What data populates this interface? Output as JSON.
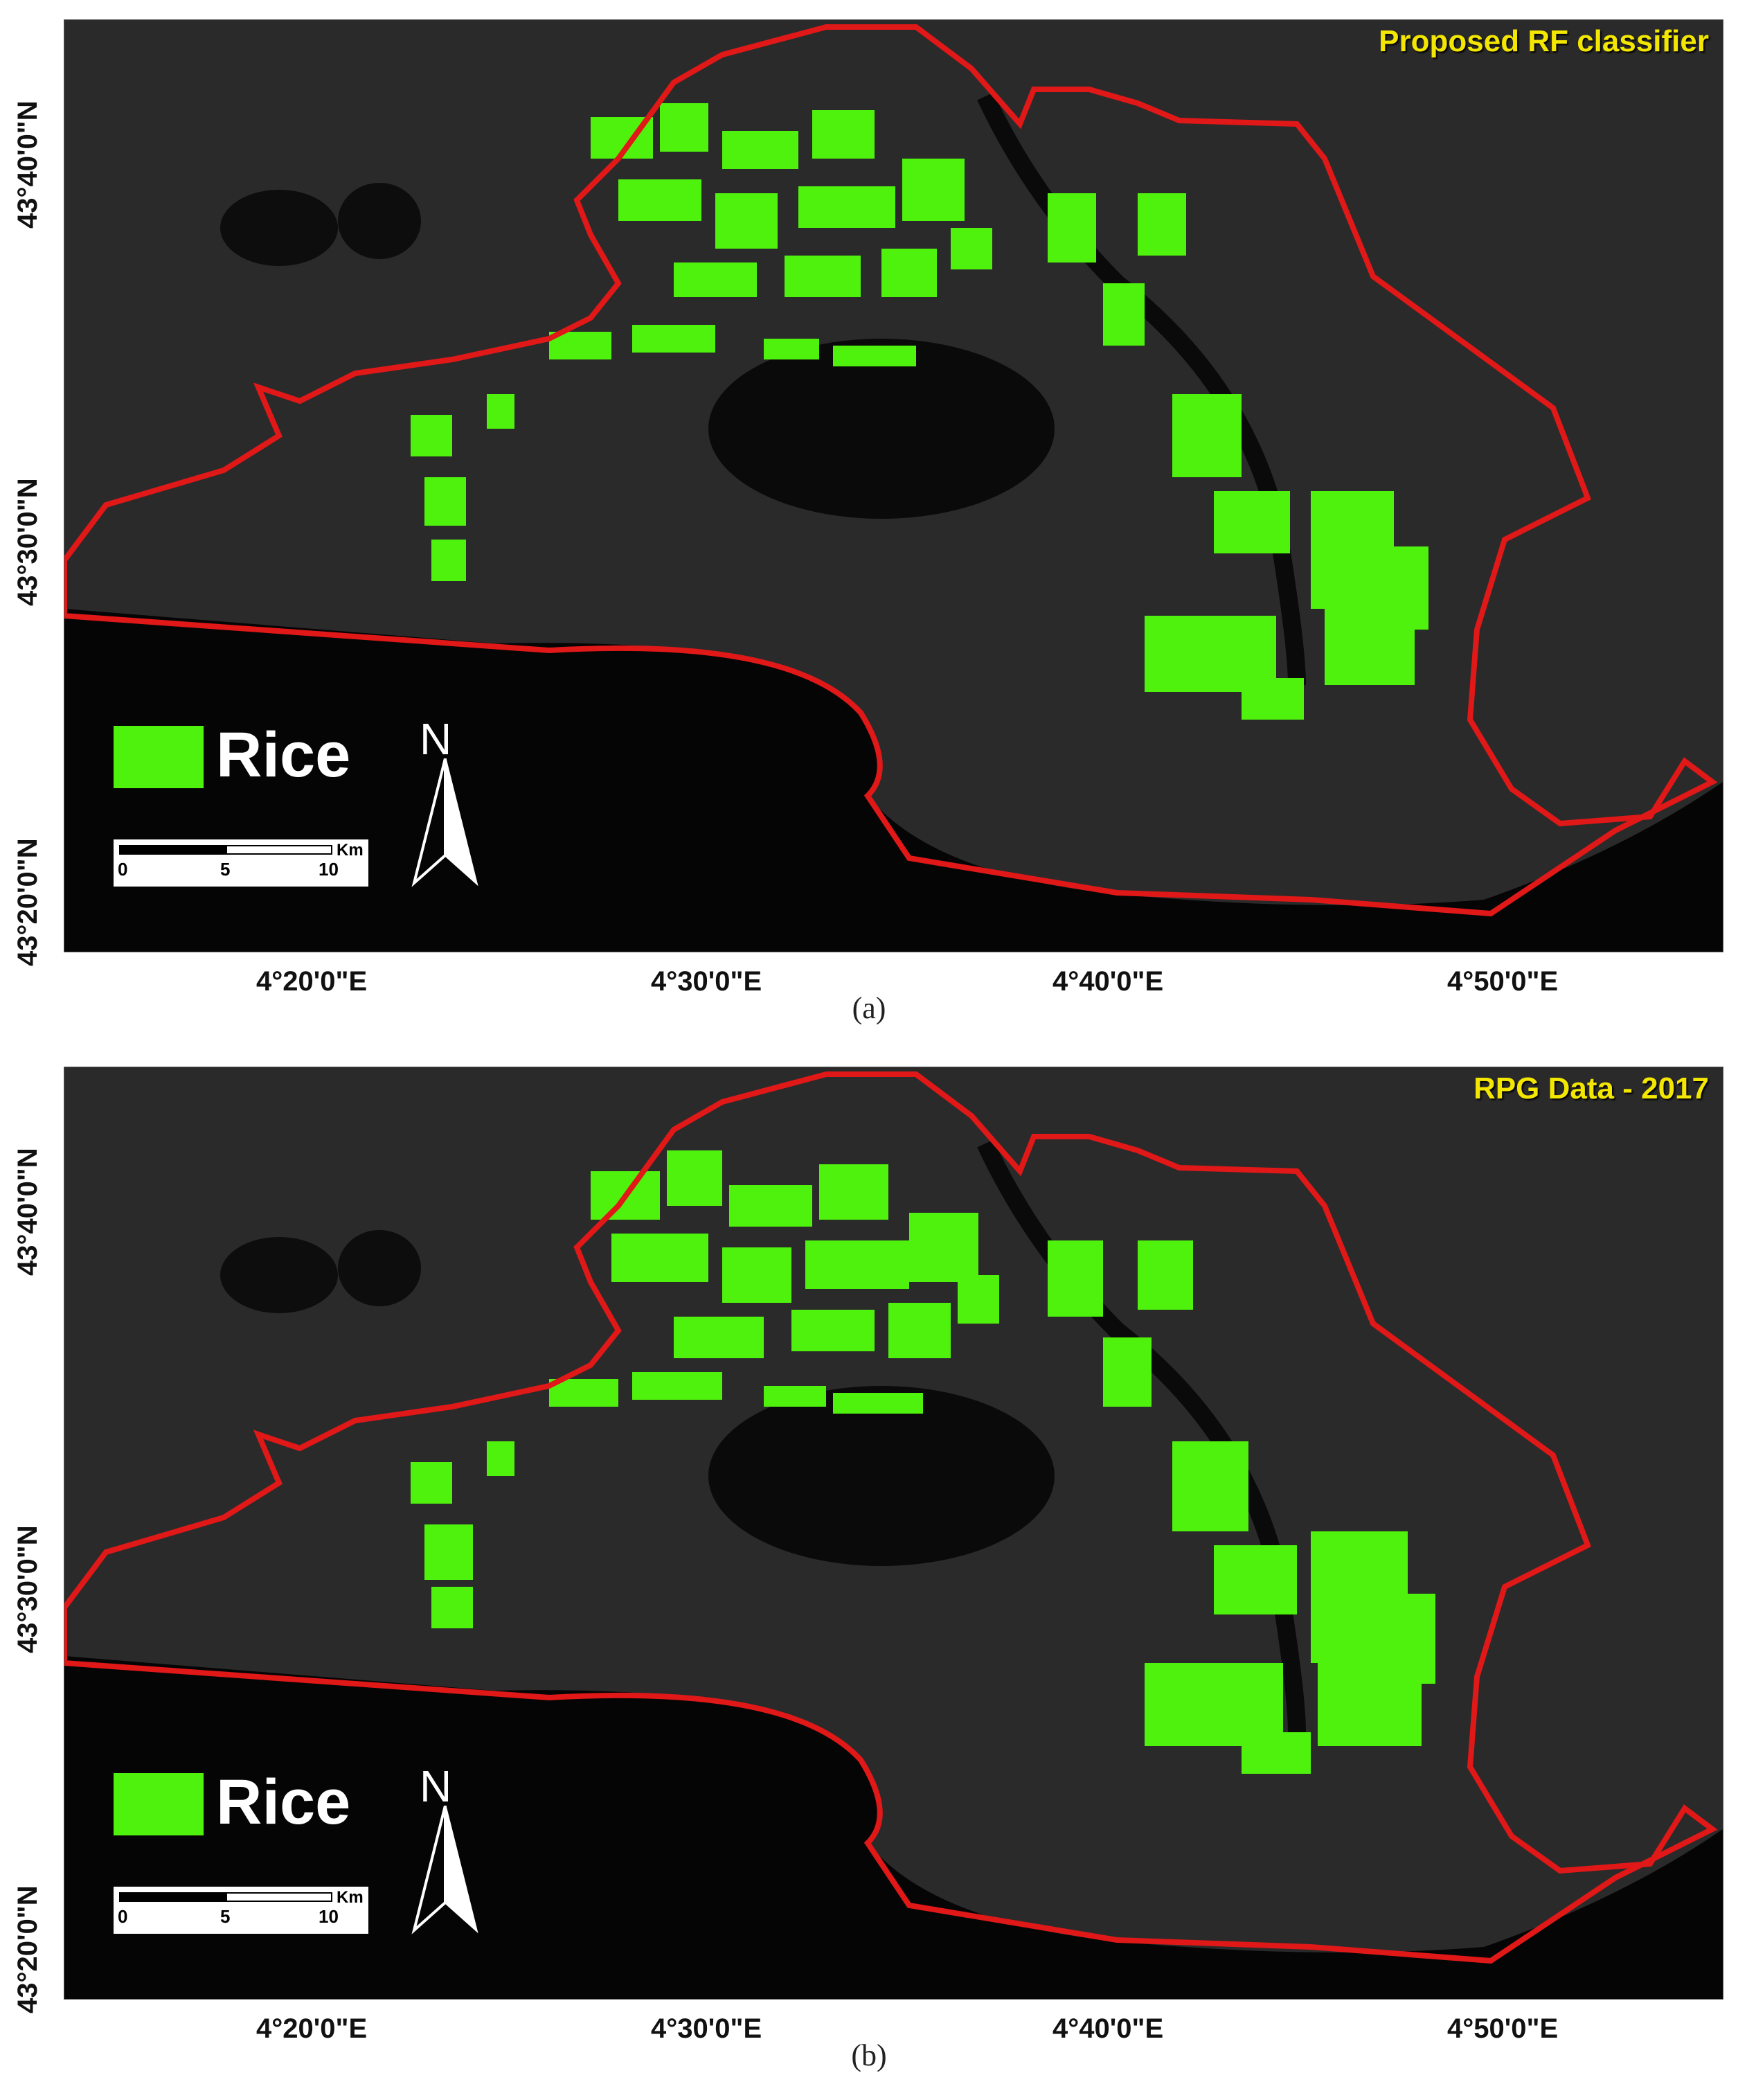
{
  "colors": {
    "rice": "#4ff20d",
    "boundary": "#e01818",
    "title": "#f3e600",
    "sea": "#050505",
    "land": "#2a2a2a"
  },
  "legend": {
    "label": "Rice"
  },
  "north_arrow": {
    "letter": "N"
  },
  "scale_bar": {
    "unit": "Km",
    "ticks": [
      "0",
      "5",
      "10"
    ]
  },
  "axes": {
    "latitude_labels": [
      "43°40'0\"N",
      "43°30'0\"N",
      "43°20'0\"N"
    ],
    "longitude_labels": [
      "4°20'0\"E",
      "4°30'0\"E",
      "4°40'0\"E",
      "4°50'0\"E"
    ]
  },
  "panels": [
    {
      "title": "Proposed RF classifier",
      "caption": "(a)"
    },
    {
      "title": "RPG Data - 2017",
      "caption": "(b)"
    }
  ]
}
